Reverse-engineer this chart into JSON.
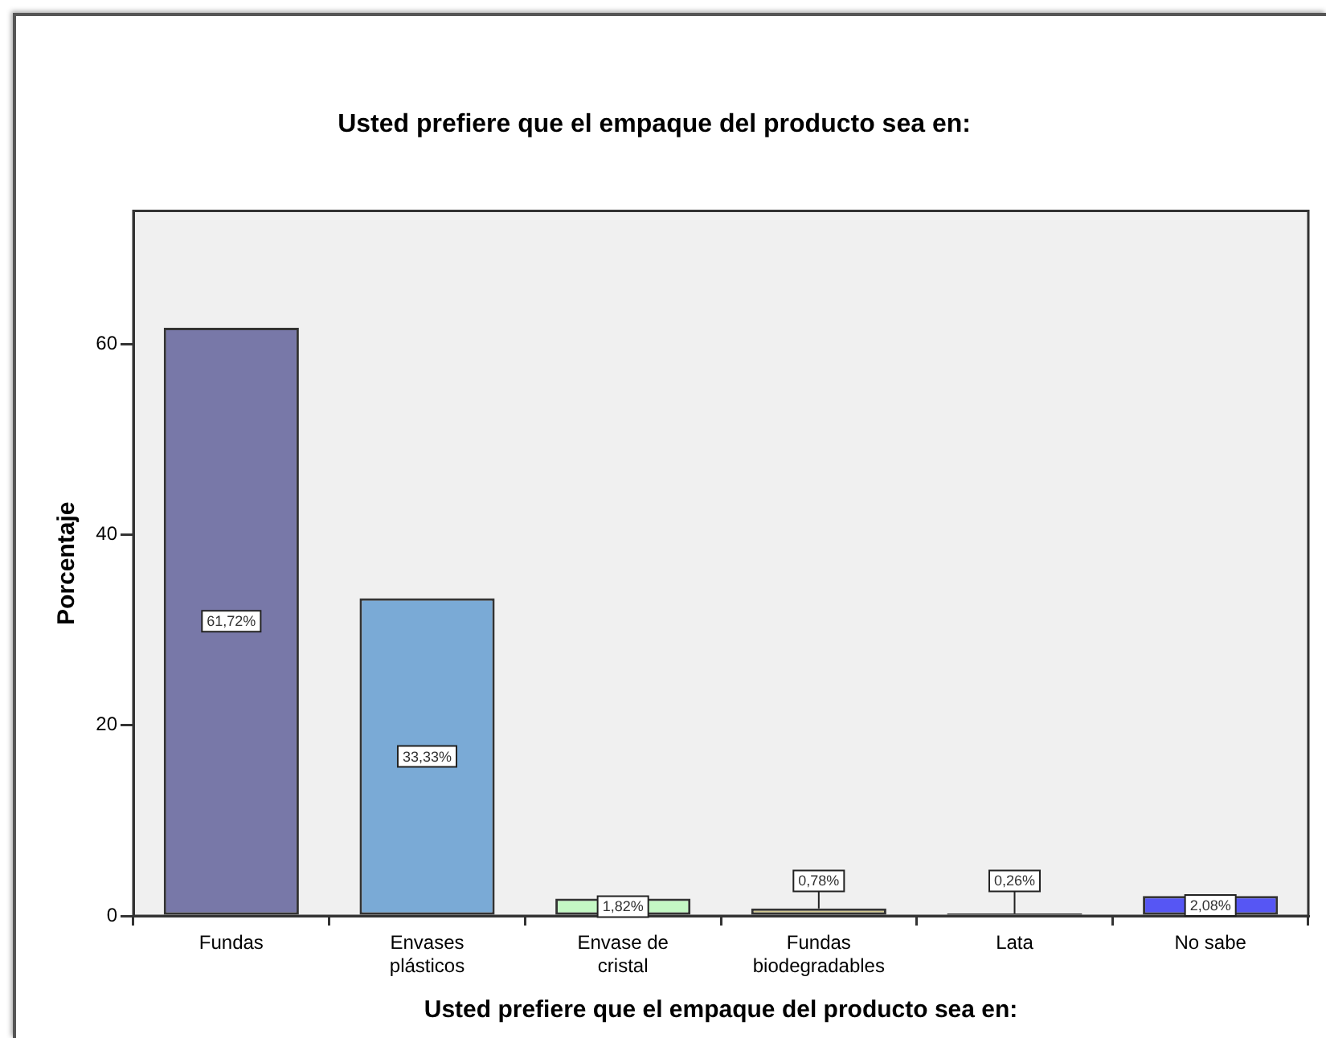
{
  "chart_data": {
    "type": "bar",
    "title": "Usted prefiere que el empaque del producto sea en:",
    "xlabel": "Usted prefiere que el empaque del producto sea en:",
    "ylabel": "Porcentaje",
    "categories": [
      "Fundas",
      "Envases plásticos",
      "Envase de cristal",
      "Fundas biodegradables",
      "Lata",
      "No sabe"
    ],
    "values": [
      61.72,
      33.33,
      1.82,
      0.78,
      0.26,
      2.08
    ],
    "colors": [
      "#7878a8",
      "#7aaad6",
      "#c4f8c4",
      "#d2c88e",
      "#333333",
      "#5656f4"
    ],
    "value_labels": [
      "61,72%",
      "33,33%",
      "1,82%",
      "0,78%",
      "0,26%",
      "2,08%"
    ],
    "ylim": [
      0,
      74
    ],
    "yticks": [
      0,
      20,
      40,
      60
    ]
  }
}
